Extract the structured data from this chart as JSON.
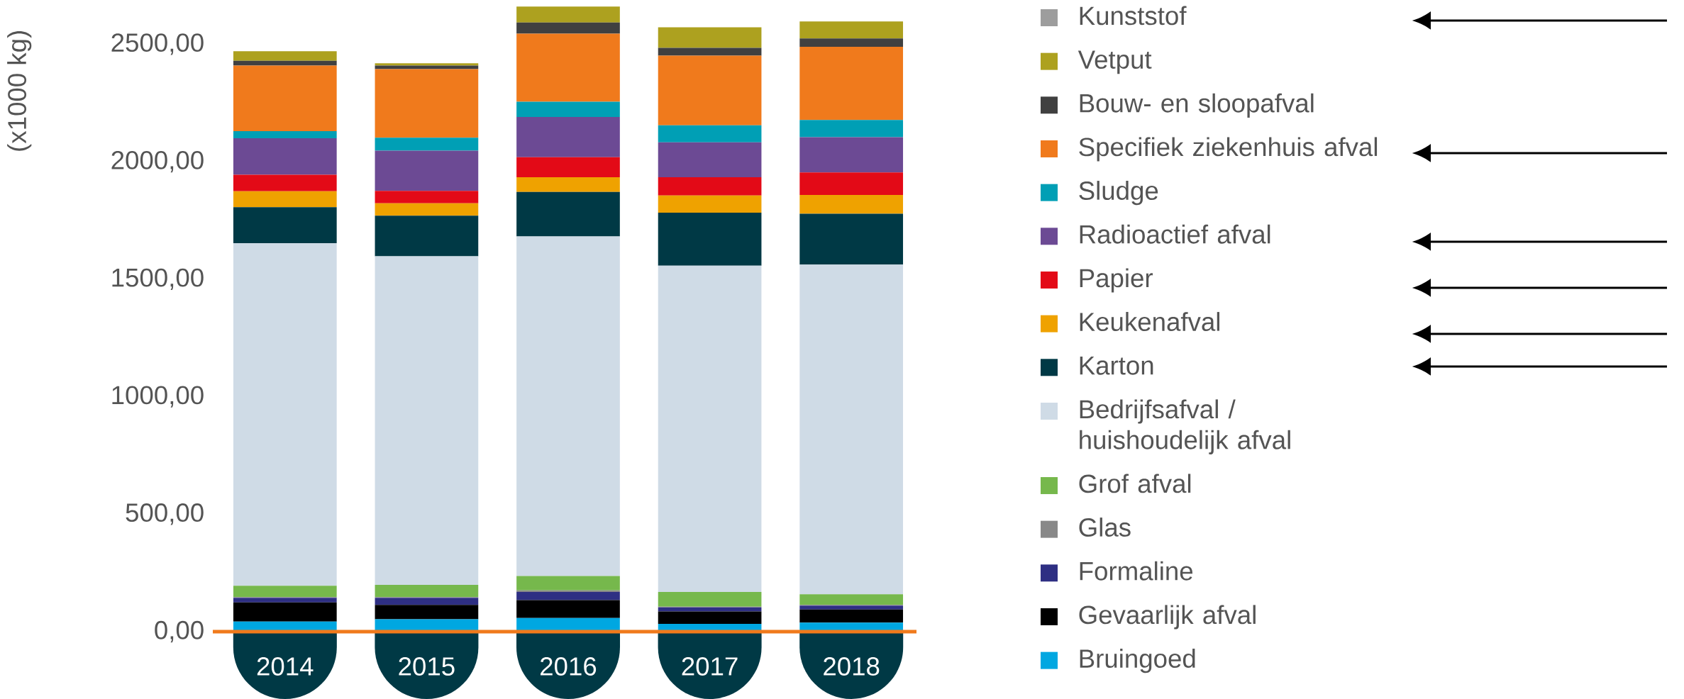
{
  "chart_data": {
    "type": "bar",
    "stacked": true,
    "ylabel": "(x1000 kg)",
    "categories": [
      "2014",
      "2015",
      "2016",
      "2017",
      "2018"
    ],
    "ylim": [
      0,
      2688
    ],
    "yticks": [
      {
        "value": 0,
        "label": "0,00"
      },
      {
        "value": 500,
        "label": "500,00"
      },
      {
        "value": 1000,
        "label": "1000,00"
      },
      {
        "value": 1500,
        "label": "1500,00"
      },
      {
        "value": 2000,
        "label": "2000,00"
      },
      {
        "value": 2500,
        "label": "2500,00"
      }
    ],
    "legend": "right",
    "series": [
      {
        "name": "Bruingoed",
        "color": "#00a7e1",
        "values": [
          43,
          53,
          58,
          33,
          38
        ]
      },
      {
        "name": "Gevaarlijk afval",
        "color": "#000000",
        "values": [
          81,
          61,
          76,
          53,
          56
        ]
      },
      {
        "name": "Formaline",
        "color": "#2e2f83",
        "values": [
          20,
          30,
          35,
          17,
          17
        ]
      },
      {
        "name": "Glas",
        "color": "#888888",
        "values": [
          3,
          3,
          7,
          3,
          3
        ]
      },
      {
        "name": "Grof afval",
        "color": "#76b84c",
        "values": [
          48,
          52,
          61,
          63,
          45
        ]
      },
      {
        "name": "Bedrijfsafval / huishoudelijk afval",
        "color": "#cfdbe6",
        "values": [
          1458,
          1398,
          1445,
          1388,
          1403
        ]
      },
      {
        "name": "Karton",
        "color": "#003945",
        "values": [
          153,
          173,
          189,
          226,
          216
        ]
      },
      {
        "name": "Keukenafval",
        "color": "#efa200",
        "values": [
          68,
          53,
          63,
          73,
          80
        ]
      },
      {
        "name": "Papier",
        "color": "#e30a17",
        "values": [
          70,
          53,
          85,
          78,
          96
        ]
      },
      {
        "name": "Radioactief afval",
        "color": "#6c4a94",
        "values": [
          156,
          171,
          171,
          148,
          150
        ]
      },
      {
        "name": "Sludge",
        "color": "#009fb5",
        "values": [
          30,
          55,
          65,
          73,
          73
        ]
      },
      {
        "name": "Specifiek ziekenhuis afval",
        "color": "#f07a1c",
        "values": [
          279,
          292,
          290,
          296,
          312
        ]
      },
      {
        "name": "Bouw- en sloopafval",
        "color": "#404040",
        "values": [
          20,
          15,
          47,
          33,
          35
        ]
      },
      {
        "name": "Vetput",
        "color": "#ada11f",
        "values": [
          41,
          10,
          68,
          88,
          73
        ]
      },
      {
        "name": "Kunststof",
        "color": "#9d9d9d",
        "values": [
          null,
          null,
          null,
          null,
          null
        ]
      }
    ]
  }
}
